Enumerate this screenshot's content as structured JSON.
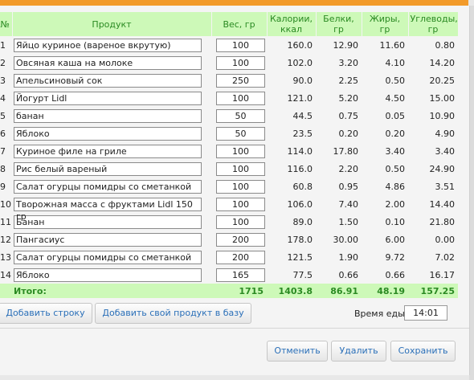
{
  "headers": {
    "num": "№",
    "product": "Продукт",
    "weight": "Вес, гр",
    "calories": "Калории, ккал",
    "protein": "Белки, гр",
    "fat": "Жиры, гр",
    "carbs": "Углеводы, гр"
  },
  "rows": [
    {
      "num": "1",
      "product": "Яйцо куриное (вареное вкрутую)",
      "weight": "100",
      "calories": "160.0",
      "protein": "12.90",
      "fat": "11.60",
      "carbs": "0.80"
    },
    {
      "num": "2",
      "product": "Овсяная каша на молоке",
      "weight": "100",
      "calories": "102.0",
      "protein": "3.20",
      "fat": "4.10",
      "carbs": "14.20"
    },
    {
      "num": "3",
      "product": "Апельсиновый сок",
      "weight": "250",
      "calories": "90.0",
      "protein": "2.25",
      "fat": "0.50",
      "carbs": "20.25"
    },
    {
      "num": "4",
      "product": "Йогурт Lidl",
      "weight": "100",
      "calories": "121.0",
      "protein": "5.20",
      "fat": "4.50",
      "carbs": "15.00"
    },
    {
      "num": "5",
      "product": "банан",
      "weight": "50",
      "calories": "44.5",
      "protein": "0.75",
      "fat": "0.05",
      "carbs": "10.90"
    },
    {
      "num": "6",
      "product": "Яблоко",
      "weight": "50",
      "calories": "23.5",
      "protein": "0.20",
      "fat": "0.20",
      "carbs": "4.90"
    },
    {
      "num": "7",
      "product": "Куриное филе на гриле",
      "weight": "100",
      "calories": "114.0",
      "protein": "17.80",
      "fat": "3.40",
      "carbs": "3.40"
    },
    {
      "num": "8",
      "product": "Рис белый вареный",
      "weight": "100",
      "calories": "116.0",
      "protein": "2.20",
      "fat": "0.50",
      "carbs": "24.90"
    },
    {
      "num": "9",
      "product": "Салат огурцы помидры со сметанкой",
      "weight": "100",
      "calories": "60.8",
      "protein": "0.95",
      "fat": "4.86",
      "carbs": "3.51"
    },
    {
      "num": "10",
      "product": "Творожная масса с фруктами Lidl 150 гр",
      "weight": "100",
      "calories": "106.0",
      "protein": "7.40",
      "fat": "2.00",
      "carbs": "14.40"
    },
    {
      "num": "11",
      "product": "Банан",
      "weight": "100",
      "calories": "89.0",
      "protein": "1.50",
      "fat": "0.10",
      "carbs": "21.80"
    },
    {
      "num": "12",
      "product": "Пангасиус",
      "weight": "200",
      "calories": "178.0",
      "protein": "30.00",
      "fat": "6.00",
      "carbs": "0.00"
    },
    {
      "num": "13",
      "product": "Салат огурцы помидры со сметанкой",
      "weight": "200",
      "calories": "121.5",
      "protein": "1.90",
      "fat": "9.72",
      "carbs": "7.02"
    },
    {
      "num": "14",
      "product": "Яблоко",
      "weight": "165",
      "calories": "77.5",
      "protein": "0.66",
      "fat": "0.66",
      "carbs": "16.17"
    }
  ],
  "total": {
    "label": "Итого:",
    "weight": "1715",
    "calories": "1403.8",
    "protein": "86.91",
    "fat": "48.19",
    "carbs": "157.25"
  },
  "actions": {
    "add_row": "Добавить строку",
    "add_product": "Добавить свой продукт в базу",
    "meal_time_label": "Время еды:",
    "meal_time_value": "14:01",
    "cancel": "Отменить",
    "delete": "Удалить",
    "save": "Сохранить"
  },
  "colors": {
    "header_bg": "#cdf9b8",
    "header_text": "#2a8a22",
    "accent_bar": "#f29a2a",
    "button_text": "#2a6fb8"
  }
}
